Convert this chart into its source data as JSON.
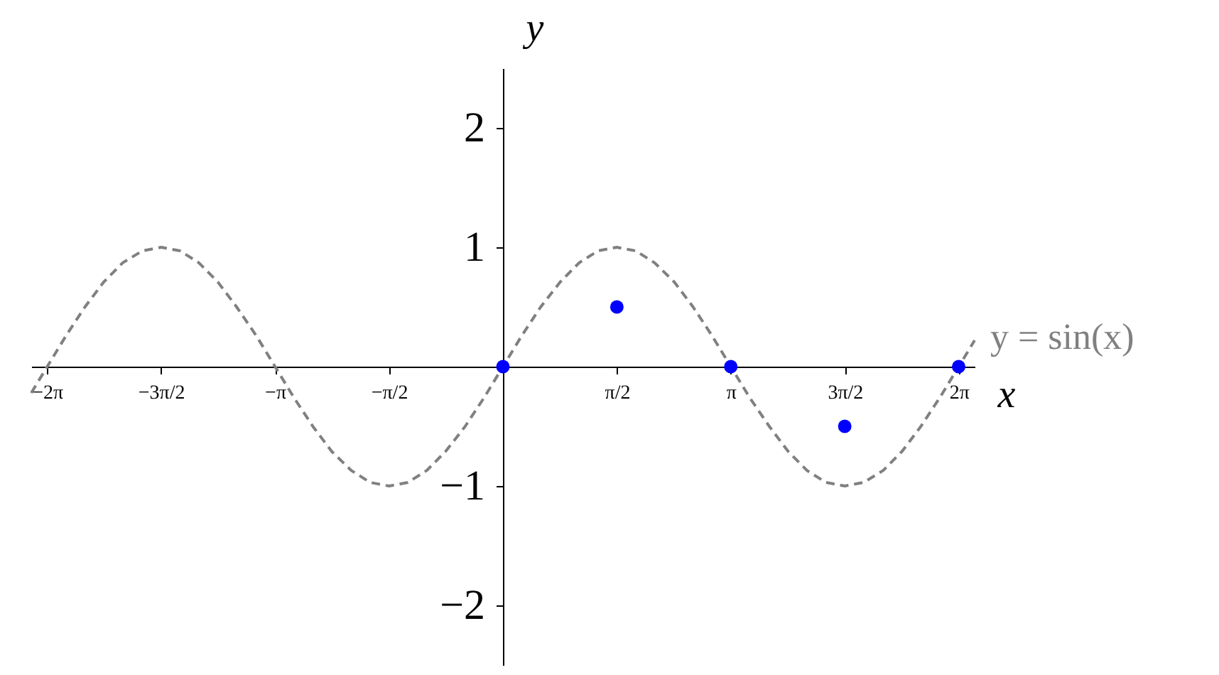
{
  "chart_data": {
    "type": "line",
    "xlabel": "x",
    "ylabel": "y",
    "xlim": [
      -6.5,
      6.5
    ],
    "ylim": [
      -2.5,
      2.5
    ],
    "xticks": [
      {
        "value": -6.2832,
        "label": "−2π"
      },
      {
        "value": -4.7124,
        "label": "−3π/2"
      },
      {
        "value": -3.1416,
        "label": "−π"
      },
      {
        "value": -1.5708,
        "label": "−π/2"
      },
      {
        "value": 1.5708,
        "label": "π/2"
      },
      {
        "value": 3.1416,
        "label": "π"
      },
      {
        "value": 4.7124,
        "label": "3π/2"
      },
      {
        "value": 6.2832,
        "label": "2π"
      }
    ],
    "yticks": [
      -2,
      -1,
      1,
      2
    ],
    "grid": false,
    "series": [
      {
        "name": "y = sin(x)",
        "color": "#808080",
        "line_style": "dashed",
        "marker": "none",
        "x": [
          -6.5,
          -6.28,
          -6.02,
          -5.76,
          -5.5,
          -5.24,
          -4.97,
          -4.71,
          -4.45,
          -4.19,
          -3.93,
          -3.67,
          -3.4,
          -3.14,
          -2.88,
          -2.62,
          -2.36,
          -2.09,
          -1.83,
          -1.57,
          -1.31,
          -1.05,
          -0.79,
          -0.52,
          -0.26,
          0,
          0.26,
          0.52,
          0.79,
          1.05,
          1.31,
          1.57,
          1.83,
          2.09,
          2.36,
          2.62,
          2.88,
          3.14,
          3.4,
          3.67,
          3.93,
          4.19,
          4.45,
          4.71,
          4.97,
          5.24,
          5.5,
          5.76,
          6.02,
          6.28,
          6.5
        ],
        "values": [
          -0.22,
          0,
          0.26,
          0.5,
          0.71,
          0.87,
          0.97,
          1,
          0.97,
          0.87,
          0.71,
          0.5,
          0.26,
          0,
          -0.26,
          -0.5,
          -0.71,
          -0.87,
          -0.97,
          -1,
          -0.97,
          -0.87,
          -0.71,
          -0.5,
          -0.26,
          0,
          0.26,
          0.5,
          0.71,
          0.87,
          0.97,
          1,
          0.97,
          0.87,
          0.71,
          0.5,
          0.26,
          0,
          -0.26,
          -0.5,
          -0.71,
          -0.87,
          -0.97,
          -1,
          -0.97,
          -0.87,
          -0.71,
          -0.5,
          -0.26,
          0,
          0.22
        ]
      },
      {
        "type": "scatter",
        "color": "#0000ff",
        "marker": "circle",
        "x": [
          0,
          1.57,
          3.14,
          4.71,
          6.28
        ],
        "values": [
          0,
          0.5,
          0,
          -0.5,
          0
        ]
      }
    ]
  }
}
